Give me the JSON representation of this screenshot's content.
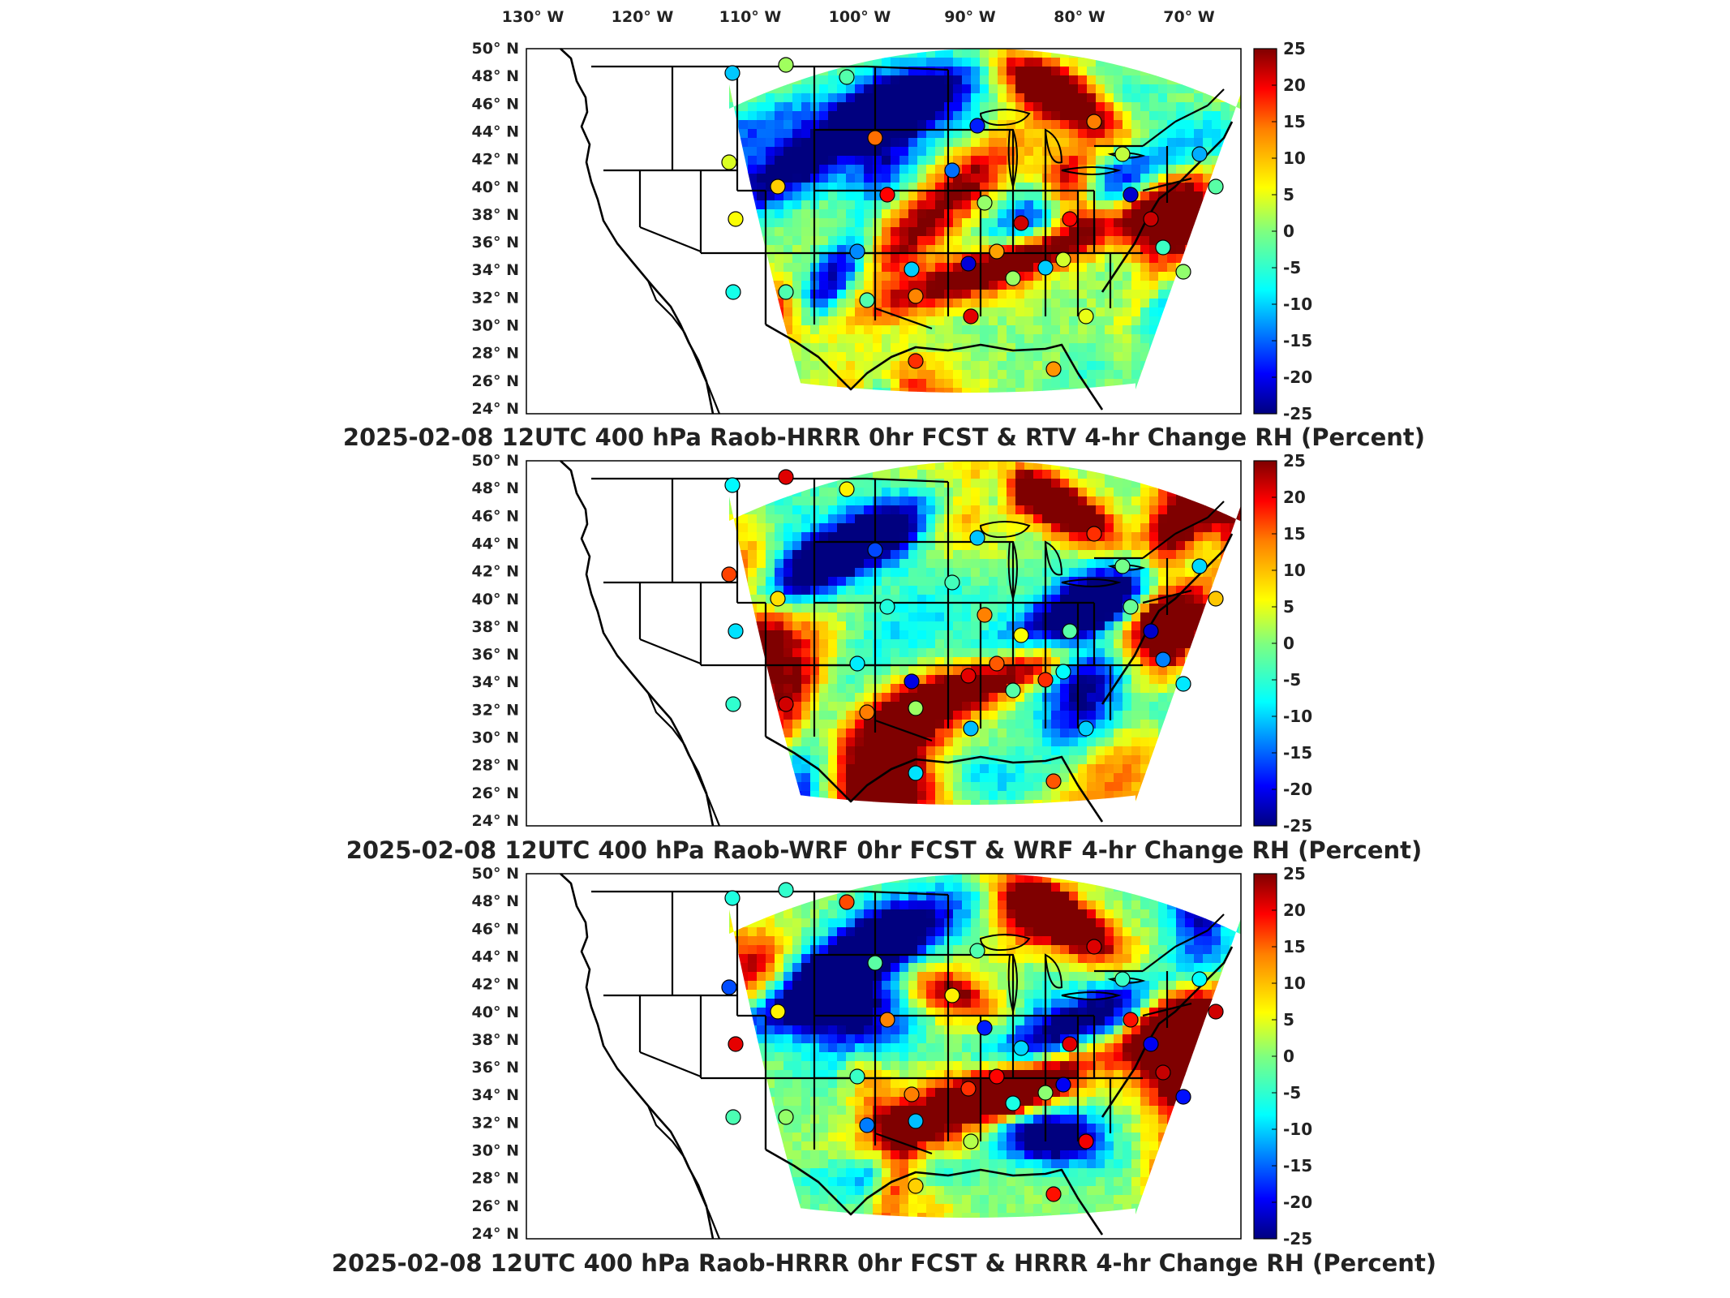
{
  "top_axis_labels": [
    "130° W",
    "120° W",
    "110° W",
    "100° W",
    "90° W",
    "80° W",
    "70° W"
  ],
  "lat_labels": [
    "50° N",
    "48° N",
    "46° N",
    "44° N",
    "42° N",
    "40° N",
    "38° N",
    "36° N",
    "34° N",
    "32° N",
    "30° N",
    "28° N",
    "26° N",
    "24° N"
  ],
  "colorbar": {
    "ticks": [
      "25",
      "20",
      "15",
      "10",
      "5",
      "0",
      "-5",
      "-10",
      "-15",
      "-20",
      "-25"
    ],
    "min": -25,
    "max": 25,
    "colormap": "jet",
    "colors": [
      "#00007f",
      "#0000ff",
      "#007fff",
      "#00ffff",
      "#7fff7f",
      "#ffff00",
      "#ff7f00",
      "#ff0000",
      "#7f0000"
    ]
  },
  "panels": [
    {
      "title": "2025-02-08 12UTC 400 hPa Raob-HRRR 0hr FCST & RTV 4-hr Change RH (Percent)",
      "seed": 11
    },
    {
      "title": "2025-02-08 12UTC 400 hPa Raob-WRF 0hr FCST & WRF 4-hr Change RH (Percent)",
      "seed": 29
    },
    {
      "title": "2025-02-08 12UTC 400 hPa Raob-HRRR 0hr FCST & HRRR 4-hr Change RH (Percent)",
      "seed": 47
    }
  ],
  "map_extent": {
    "lon_min": -135,
    "lon_max": -65,
    "lat_min": 24,
    "lat_max": 50
  }
}
